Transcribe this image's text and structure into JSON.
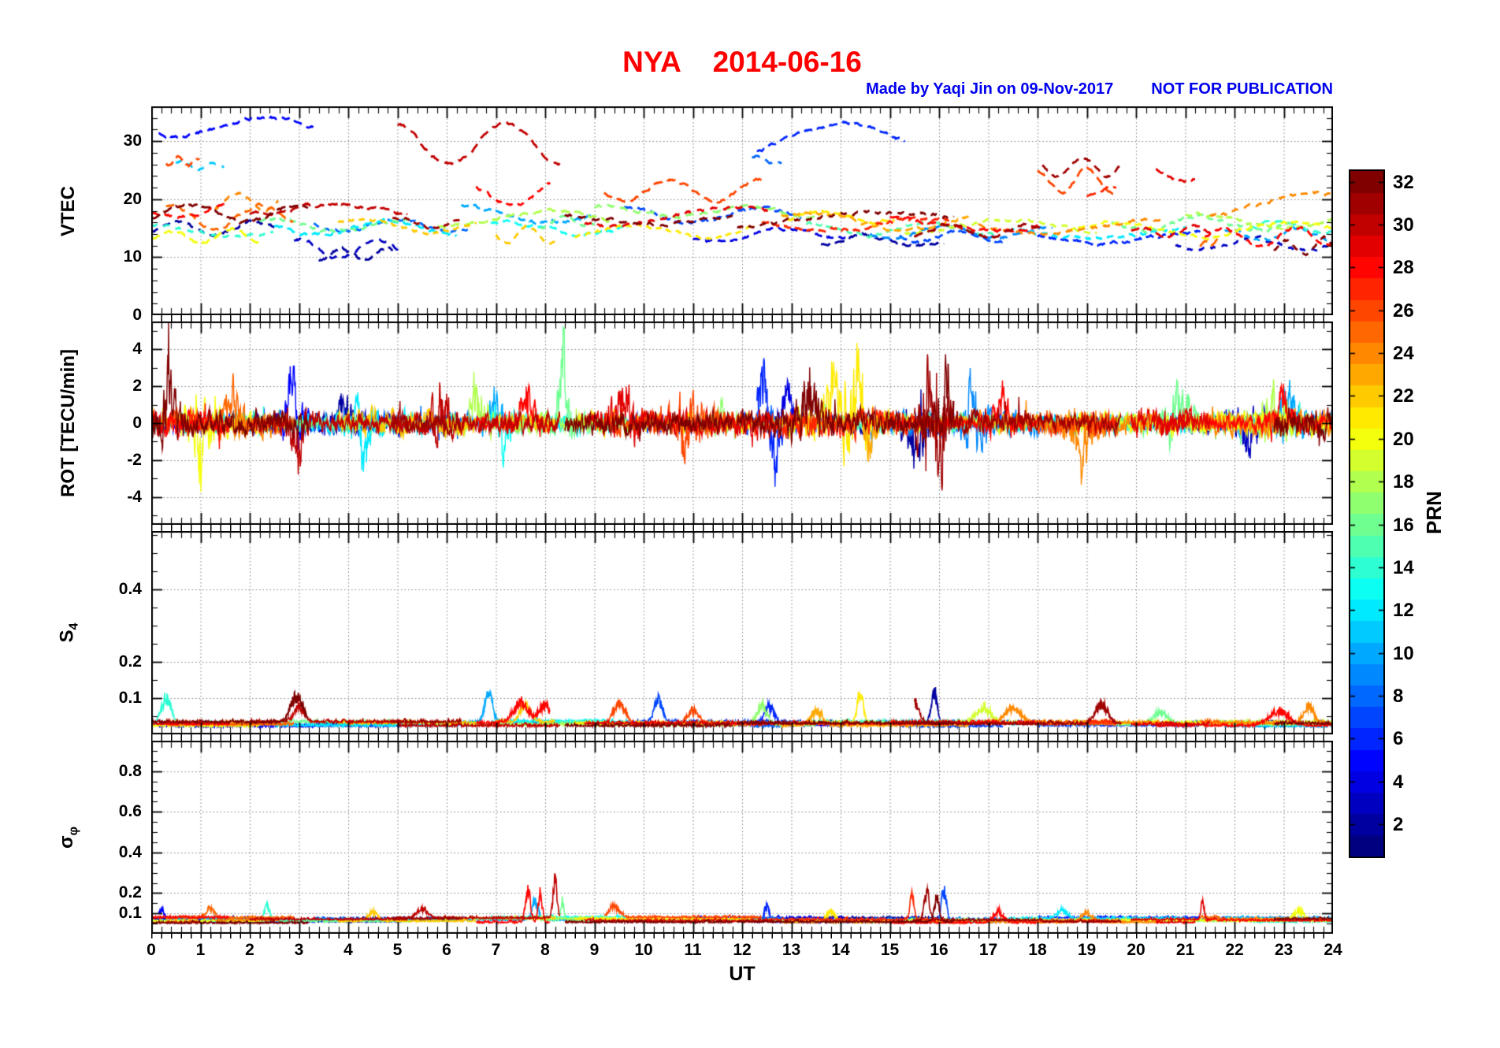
{
  "header": {
    "title": "NYA    2014-06-16",
    "credit": "Made by Yaqi Jin on 09-Nov-2017",
    "notice": "NOT FOR PUBLICATION",
    "title_color": "#ff0000",
    "credit_color": "#0000ee"
  },
  "chart_data": {
    "type": "line",
    "station": "NYA",
    "date": "2014-06-16",
    "grid": "dotted",
    "x": {
      "label": "UT",
      "min": 0,
      "max": 24,
      "ticks": [
        0,
        1,
        2,
        3,
        4,
        5,
        6,
        7,
        8,
        9,
        10,
        11,
        12,
        13,
        14,
        15,
        16,
        17,
        18,
        19,
        20,
        21,
        22,
        23,
        24
      ]
    },
    "panels": [
      {
        "id": "vtec",
        "ylabel": "VTEC",
        "ymin": 0,
        "ymax": 36,
        "yticks": [
          0,
          10,
          20,
          30
        ],
        "minor": 2,
        "style": "dashed"
      },
      {
        "id": "rot",
        "ylabel": "ROT [TECU/min]",
        "ymin": -5.5,
        "ymax": 5.5,
        "yticks": [
          -4,
          -2,
          0,
          2,
          4
        ],
        "minor": 1,
        "style": "solid"
      },
      {
        "id": "s4",
        "ylabel": "S",
        "ylabel_sub": "4",
        "ymin": 0,
        "ymax": 0.56,
        "yticks": [
          0.1,
          0.2,
          0.4
        ],
        "minor": 0.05,
        "style": "solid"
      },
      {
        "id": "sigmaphi",
        "ylabel": "σ",
        "ylabel_sub": "φ",
        "ymin": 0,
        "ymax": 0.95,
        "yticks": [
          0.1,
          0.2,
          0.4,
          0.6,
          0.8
        ],
        "minor": 0.05,
        "style": "solid"
      }
    ],
    "colorbar": {
      "label": "PRN",
      "min": 1,
      "max": 32,
      "colormap": "jet",
      "ticks": [
        2,
        4,
        6,
        8,
        10,
        12,
        14,
        16,
        18,
        20,
        22,
        24,
        26,
        28,
        30,
        32
      ]
    },
    "arcs_format": [
      "prn",
      "t_start_h",
      "t_end_h",
      "vtec_base_TECU",
      "vtec_amp_TECU"
    ],
    "arcs": [
      [
        5,
        0.15,
        3.3,
        32.5,
        1.5
      ],
      [
        30,
        5.0,
        8.3,
        29.5,
        3.5
      ],
      [
        6,
        12.3,
        15.3,
        30.5,
        2.5
      ],
      [
        31,
        18.1,
        19.7,
        25.5,
        1.5
      ],
      [
        29,
        20.4,
        21.2,
        24.0,
        1.0
      ],
      [
        26,
        9.2,
        12.4,
        21.5,
        2.0
      ],
      [
        28,
        6.6,
        8.1,
        21.5,
        2.5
      ],
      [
        24,
        21.5,
        24,
        19.0,
        2.0
      ],
      [
        2,
        0,
        2.6,
        15.0,
        1.2
      ],
      [
        3,
        2.9,
        5.1,
        11.5,
        1.5
      ],
      [
        14,
        0,
        2.5,
        14.5,
        1.0
      ],
      [
        20,
        0,
        2.2,
        13.5,
        1.2
      ],
      [
        32,
        0,
        3.2,
        17.5,
        1.5
      ],
      [
        28,
        0,
        1.6,
        18.5,
        1.3
      ],
      [
        25,
        0.3,
        2.9,
        17.0,
        2.0
      ],
      [
        16,
        2.2,
        5.3,
        15.5,
        1.0
      ],
      [
        12,
        2.5,
        6.2,
        15.0,
        1.2
      ],
      [
        8,
        3.3,
        6.5,
        15.5,
        1.0
      ],
      [
        2,
        3.4,
        4.9,
        10.5,
        1.0
      ],
      [
        22,
        3.8,
        6.6,
        15.5,
        1.2
      ],
      [
        31,
        4.9,
        6.3,
        16.0,
        1.0
      ],
      [
        30,
        2.0,
        5.2,
        17.8,
        1.2
      ],
      [
        18,
        5.8,
        9.4,
        16.5,
        1.3
      ],
      [
        10,
        6.3,
        9.0,
        17.5,
        1.5
      ],
      [
        13,
        6.9,
        9.7,
        15.0,
        1.0
      ],
      [
        16,
        7.9,
        9.0,
        16.0,
        0.8
      ],
      [
        21,
        8.6,
        12.2,
        14.5,
        1.2
      ],
      [
        29,
        8.8,
        12.6,
        17.0,
        1.5
      ],
      [
        17,
        9.0,
        13.5,
        17.8,
        1.0
      ],
      [
        32,
        8.4,
        11.8,
        16.8,
        1.0
      ],
      [
        7,
        9.6,
        13.2,
        17.2,
        1.3
      ],
      [
        4,
        11.0,
        14.1,
        13.8,
        1.0
      ],
      [
        32,
        11.9,
        16.3,
        16.5,
        1.2
      ],
      [
        27,
        12.4,
        16.2,
        15.5,
        1.0
      ],
      [
        23,
        12.8,
        16.6,
        16.2,
        1.4
      ],
      [
        21,
        12.9,
        15.1,
        17.0,
        1.0
      ],
      [
        15,
        13.3,
        17.2,
        14.8,
        1.0
      ],
      [
        2,
        13.6,
        16.1,
        12.8,
        0.8
      ],
      [
        9,
        14.6,
        18.3,
        14.4,
        1.0
      ],
      [
        19,
        15.3,
        19.2,
        15.2,
        1.1
      ],
      [
        28,
        15.0,
        18.0,
        15.8,
        1.2
      ],
      [
        31,
        15.5,
        18.1,
        14.6,
        1.0
      ],
      [
        7,
        15.2,
        17.3,
        13.5,
        0.8
      ],
      [
        24,
        16.8,
        20.5,
        15.6,
        1.3
      ],
      [
        12,
        17.4,
        21.0,
        14.2,
        1.0
      ],
      [
        6,
        18.0,
        21.3,
        13.4,
        1.0
      ],
      [
        20,
        18.6,
        24,
        14.8,
        1.2
      ],
      [
        16,
        19.5,
        23.2,
        15.8,
        1.2
      ],
      [
        29,
        19.9,
        21.5,
        14.4,
        0.8
      ],
      [
        3,
        20.8,
        24,
        12.2,
        1.0
      ],
      [
        28,
        21.4,
        24,
        13.5,
        1.5
      ],
      [
        10,
        21.8,
        24,
        13.8,
        1.0
      ],
      [
        14,
        22.3,
        24,
        15.2,
        1.0
      ],
      [
        32,
        22.8,
        24,
        11.5,
        1.5
      ],
      [
        18,
        21.0,
        24,
        16.3,
        1.2
      ],
      [
        22,
        7.0,
        8.2,
        13.8,
        1.5
      ],
      [
        26,
        0.3,
        1.0,
        26.5,
        0.8
      ],
      [
        24,
        1.3,
        2.6,
        19.5,
        1.5
      ],
      [
        8,
        12.2,
        12.8,
        26.8,
        0.6
      ],
      [
        26,
        18.0,
        19.6,
        23.0,
        2.0
      ],
      [
        27,
        19.0,
        19.6,
        21.5,
        0.8
      ],
      [
        25,
        21.3,
        21.7,
        12.5,
        0.6
      ],
      [
        11,
        0.5,
        1.5,
        25.8,
        0.8
      ]
    ],
    "events_format": [
      "prn",
      "t_h",
      "amplitude",
      "width_h"
    ],
    "events": {
      "rot": [
        [
          5,
          2.85,
          3.2,
          0.06
        ],
        [
          16,
          8.35,
          5.5,
          0.05
        ],
        [
          30,
          3.0,
          -1.8,
          0.08
        ],
        [
          18,
          6.6,
          2.0,
          0.06
        ],
        [
          10,
          7.0,
          1.8,
          0.08
        ],
        [
          28,
          7.6,
          2.2,
          0.1
        ],
        [
          6,
          12.45,
          3.6,
          0.12
        ],
        [
          6,
          12.65,
          -3.2,
          0.1
        ],
        [
          4,
          12.9,
          2.8,
          0.08
        ],
        [
          32,
          13.35,
          2.2,
          0.08
        ],
        [
          21,
          13.9,
          1.8,
          0.1
        ],
        [
          21,
          14.35,
          2.0,
          0.06
        ],
        [
          2,
          15.55,
          -2.9,
          0.08
        ],
        [
          31,
          15.75,
          2.9,
          0.06
        ],
        [
          31,
          16.0,
          -2.6,
          0.06
        ],
        [
          32,
          16.15,
          3.0,
          0.06
        ],
        [
          28,
          17.3,
          2.0,
          0.08
        ],
        [
          10,
          23.1,
          1.6,
          0.08
        ],
        [
          28,
          23.0,
          1.5,
          0.1
        ],
        [
          12,
          4.3,
          -2.2,
          0.06
        ],
        [
          25,
          1.6,
          1.8,
          0.07
        ],
        [
          30,
          5.9,
          2.0,
          0.06
        ],
        [
          13,
          7.15,
          -1.9,
          0.06
        ],
        [
          29,
          9.6,
          1.7,
          0.07
        ],
        [
          26,
          10.9,
          -1.6,
          0.07
        ],
        [
          2,
          3.9,
          1.6,
          0.06
        ],
        [
          20,
          1.0,
          -1.7,
          0.06
        ],
        [
          32,
          0.35,
          1.8,
          0.06
        ],
        [
          17,
          11.6,
          1.5,
          0.07
        ],
        [
          23,
          14.6,
          -1.8,
          0.07
        ],
        [
          9,
          16.7,
          1.5,
          0.07
        ],
        [
          24,
          18.9,
          -1.6,
          0.07
        ],
        [
          16,
          20.9,
          1.5,
          0.07
        ],
        [
          3,
          22.3,
          -1.5,
          0.07
        ],
        [
          18,
          22.8,
          1.6,
          0.07
        ]
      ],
      "s4": [
        [
          14,
          0.3,
          0.09,
          0.1
        ],
        [
          32,
          2.95,
          0.09,
          0.12
        ],
        [
          10,
          6.85,
          0.1,
          0.08
        ],
        [
          28,
          7.5,
          0.07,
          0.15
        ],
        [
          28,
          8.0,
          0.06,
          0.12
        ],
        [
          26,
          9.5,
          0.07,
          0.12
        ],
        [
          7,
          10.3,
          0.08,
          0.08
        ],
        [
          6,
          12.55,
          0.06,
          0.1
        ],
        [
          17,
          12.4,
          0.07,
          0.1
        ],
        [
          21,
          14.4,
          0.1,
          0.06
        ],
        [
          2,
          15.9,
          0.11,
          0.06
        ],
        [
          31,
          15.5,
          0.07,
          0.1
        ],
        [
          19,
          16.9,
          0.055,
          0.15
        ],
        [
          31,
          19.3,
          0.07,
          0.12
        ],
        [
          28,
          22.9,
          0.05,
          0.2
        ],
        [
          24,
          23.5,
          0.06,
          0.1
        ],
        [
          30,
          3.0,
          0.05,
          0.1
        ],
        [
          22,
          7.6,
          0.06,
          0.1
        ],
        [
          26,
          11.0,
          0.05,
          0.12
        ],
        [
          23,
          13.5,
          0.05,
          0.12
        ],
        [
          24,
          17.5,
          0.05,
          0.15
        ],
        [
          16,
          20.5,
          0.04,
          0.15
        ]
      ],
      "sigmaphi": [
        [
          5,
          0.2,
          0.08,
          0.06
        ],
        [
          14,
          2.35,
          0.1,
          0.05
        ],
        [
          28,
          7.65,
          0.22,
          0.05
        ],
        [
          28,
          7.9,
          0.18,
          0.04
        ],
        [
          30,
          8.2,
          0.24,
          0.04
        ],
        [
          10,
          7.8,
          0.12,
          0.06
        ],
        [
          16,
          8.35,
          0.12,
          0.03
        ],
        [
          26,
          9.4,
          0.07,
          0.1
        ],
        [
          6,
          12.5,
          0.1,
          0.05
        ],
        [
          27,
          15.45,
          0.16,
          0.04
        ],
        [
          31,
          15.75,
          0.18,
          0.05
        ],
        [
          32,
          15.95,
          0.15,
          0.05
        ],
        [
          7,
          16.1,
          0.2,
          0.05
        ],
        [
          29,
          21.35,
          0.13,
          0.03
        ],
        [
          28,
          17.2,
          0.07,
          0.1
        ],
        [
          20,
          23.3,
          0.06,
          0.1
        ],
        [
          25,
          1.2,
          0.06,
          0.08
        ],
        [
          22,
          4.5,
          0.05,
          0.1
        ],
        [
          30,
          5.5,
          0.06,
          0.1
        ],
        [
          21,
          13.8,
          0.06,
          0.08
        ],
        [
          24,
          19.0,
          0.06,
          0.1
        ],
        [
          12,
          18.5,
          0.05,
          0.1
        ]
      ]
    }
  }
}
